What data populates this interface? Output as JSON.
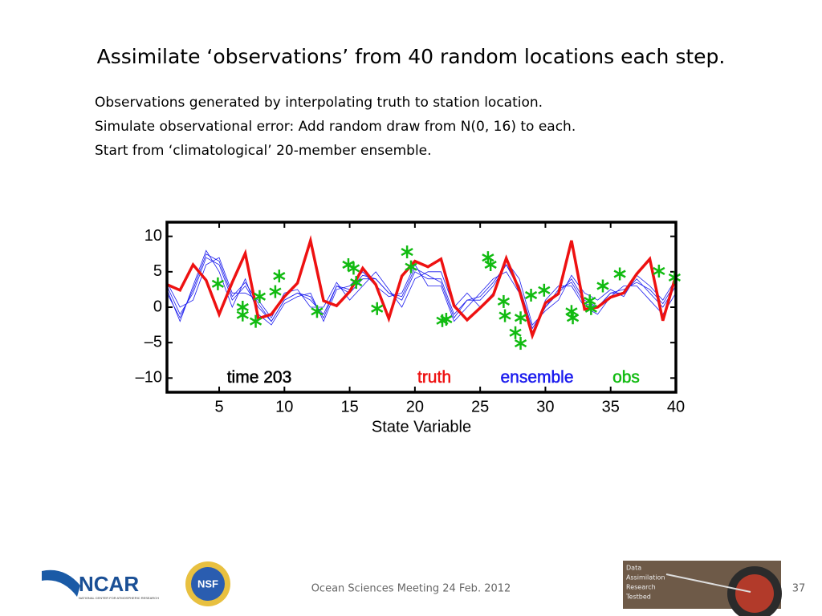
{
  "slide": {
    "title": "Assimilate ‘observations’ from 40 random locations each step.",
    "bullets": [
      "Observations generated by interpolating truth to station location.",
      "Simulate observational error: Add random draw from N(0, 16) to each.",
      "Start from ‘climatological’ 20-member ensemble."
    ],
    "footer": "Ocean Sciences Meeting 24 Feb. 2012",
    "page_number": 37,
    "logos": {
      "ncar": "NCAR",
      "ncar_sub": "NATIONAL CENTER FOR ATMOSPHERIC RESEARCH",
      "nsf": "NSF",
      "dart": [
        "Data",
        "Assimilation",
        "Research",
        "Testbed"
      ]
    }
  },
  "chart_data": {
    "type": "line",
    "annotation": "time 203",
    "xlabel": "State Variable",
    "xlim": [
      1,
      40
    ],
    "ylim": [
      -12,
      12
    ],
    "xticks": [
      5,
      10,
      15,
      20,
      25,
      30,
      35,
      40
    ],
    "yticks": [
      {
        "value": -10,
        "label": "–10"
      },
      {
        "value": -5,
        "label": "–5"
      },
      0,
      5,
      10
    ],
    "x": [
      1,
      2,
      3,
      4,
      5,
      6,
      7,
      8,
      9,
      10,
      11,
      12,
      13,
      14,
      15,
      16,
      17,
      18,
      19,
      20,
      21,
      22,
      23,
      24,
      25,
      26,
      27,
      28,
      29,
      30,
      31,
      32,
      33,
      34,
      35,
      36,
      37,
      38,
      39,
      40
    ],
    "series": [
      {
        "name": "truth",
        "color": "#ee1111",
        "values": [
          3.2,
          2.4,
          6,
          3.8,
          -1,
          3.5,
          7.6,
          -1.6,
          -1,
          1.5,
          3.4,
          9.4,
          0.9,
          0.2,
          2.2,
          5.5,
          3.2,
          -1.6,
          4.4,
          6.5,
          5.7,
          6.8,
          0.2,
          -1.8,
          -0.1,
          1.7,
          6.9,
          2.4,
          -4,
          0.6,
          1.9,
          9.4,
          -0.3,
          0,
          1.4,
          2,
          4.7,
          6.8,
          -1.9,
          4.5
        ]
      },
      {
        "name": "ensemble",
        "color": "#1a1aee",
        "members": [
          [
            3,
            -1,
            2,
            7,
            6,
            1,
            3,
            0,
            -2,
            1,
            2,
            1,
            -1,
            3,
            2,
            4,
            4,
            2,
            1,
            5,
            4,
            4,
            -1,
            1,
            1,
            3,
            6,
            3,
            -3,
            0,
            2,
            4,
            1,
            0,
            2,
            2,
            4,
            2,
            0,
            3
          ],
          [
            2.5,
            -2,
            3,
            8,
            5,
            0,
            4,
            -1,
            -2.5,
            0.5,
            1.5,
            2,
            -2,
            2.5,
            3,
            5,
            3,
            1.5,
            2,
            6,
            3,
            3,
            -2,
            0,
            2,
            4,
            5,
            2,
            -4,
            1,
            3,
            3,
            0,
            -1,
            1.5,
            3,
            3,
            1,
            -1,
            2
          ],
          [
            3.5,
            0,
            1,
            6,
            7,
            2,
            2,
            1,
            -1.5,
            2,
            2.5,
            0,
            0,
            3.5,
            1,
            3,
            5,
            2.5,
            0,
            4,
            5,
            5,
            0,
            2,
            0,
            2,
            6.5,
            4,
            -2.5,
            -0.5,
            1,
            4.5,
            2,
            1,
            2.5,
            1.5,
            4.5,
            3,
            1,
            4
          ],
          [
            2,
            -1.5,
            2.5,
            7.5,
            6.5,
            1.5,
            3.5,
            0.5,
            -2,
            1,
            2,
            1.5,
            -1.5,
            3,
            2.5,
            4.5,
            4,
            2,
            1.5,
            5.5,
            4.5,
            3.5,
            -1.5,
            1,
            1.5,
            3.5,
            6,
            2.5,
            -3.5,
            0,
            2.5,
            3.5,
            0.5,
            0,
            2,
            2.5,
            3.5,
            2.5,
            0.5,
            3.5
          ]
        ]
      },
      {
        "name": "obs",
        "color": "#11bb11",
        "type": "scatter",
        "x": [
          4.9,
          6.8,
          6.8,
          7.8,
          8.1,
          9.3,
          9.6,
          12.5,
          14.9,
          15.3,
          15.5,
          17.1,
          19.4,
          19.7,
          22.1,
          22.4,
          25.6,
          25.8,
          26.8,
          26.9,
          27.7,
          28.1,
          28.1,
          28.9,
          29.9,
          32,
          32.1,
          33.4,
          33.5,
          34.4,
          35.7,
          38.7,
          39.9
        ],
        "values": [
          3.3,
          0,
          -1.1,
          -2,
          1.5,
          2.2,
          4.4,
          -0.6,
          6,
          5.5,
          3.5,
          -0.2,
          7.8,
          5.7,
          -1.9,
          -1.7,
          7,
          6,
          0.8,
          -1.2,
          -3.6,
          -5.1,
          -1.5,
          1.7,
          2.4,
          -0.6,
          -1.5,
          0.9,
          -0.2,
          3,
          4.7,
          5.1,
          4.2
        ]
      }
    ]
  }
}
